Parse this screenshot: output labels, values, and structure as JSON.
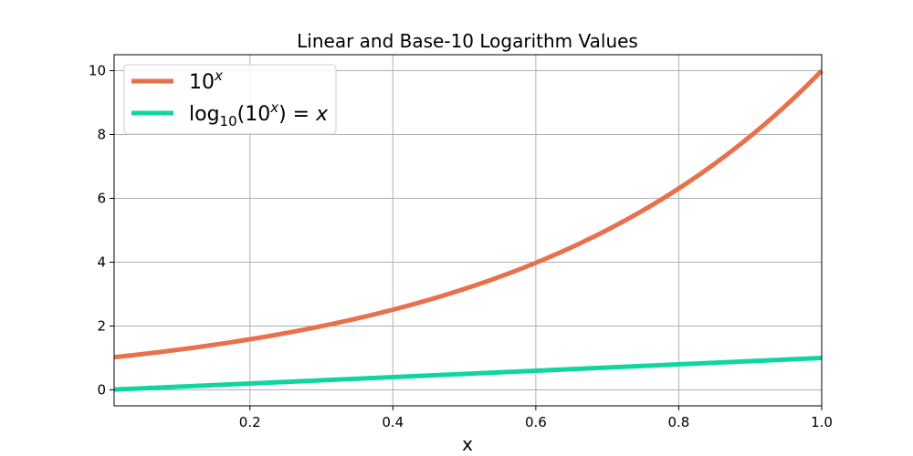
{
  "chart_data": {
    "type": "line",
    "title": "Linear and Base-10 Logarithm Values",
    "xlabel": "x",
    "ylabel": "",
    "xlim": [
      0.01,
      1.0
    ],
    "ylim": [
      -0.5,
      10.5
    ],
    "x_ticks": [
      "0.2",
      "0.4",
      "0.6",
      "0.8",
      "1.0"
    ],
    "y_ticks": [
      "0",
      "2",
      "4",
      "6",
      "8",
      "10"
    ],
    "grid": true,
    "legend_position": "top-left",
    "x_domain": [
      0.01,
      1.0
    ],
    "series": [
      {
        "name": "10^x",
        "label_base": "10",
        "label_exp": "x",
        "color": "#E8704D",
        "function": "10^x",
        "x": [
          0.01,
          0.1,
          0.2,
          0.3,
          0.4,
          0.5,
          0.6,
          0.7,
          0.8,
          0.9,
          1.0
        ],
        "y": [
          1.02,
          1.26,
          1.58,
          2.0,
          2.51,
          3.16,
          3.98,
          5.01,
          6.31,
          7.94,
          10.0
        ]
      },
      {
        "name": "log10(10^x) = x",
        "label_prefix": "log",
        "label_sub": "10",
        "label_arg": "(10",
        "label_arg_exp": "x",
        "label_suffix": ") = ",
        "label_rhs": "x",
        "color": "#0FD6A0",
        "function": "x",
        "x": [
          0.01,
          0.1,
          0.2,
          0.3,
          0.4,
          0.5,
          0.6,
          0.7,
          0.8,
          0.9,
          1.0
        ],
        "y": [
          0.01,
          0.1,
          0.2,
          0.3,
          0.4,
          0.5,
          0.6,
          0.7,
          0.8,
          0.9,
          1.0
        ]
      }
    ]
  },
  "colors": {
    "grid": "#b0b0b0",
    "axes": "#000000",
    "background": "#ffffff",
    "legend_border": "#cccccc"
  }
}
